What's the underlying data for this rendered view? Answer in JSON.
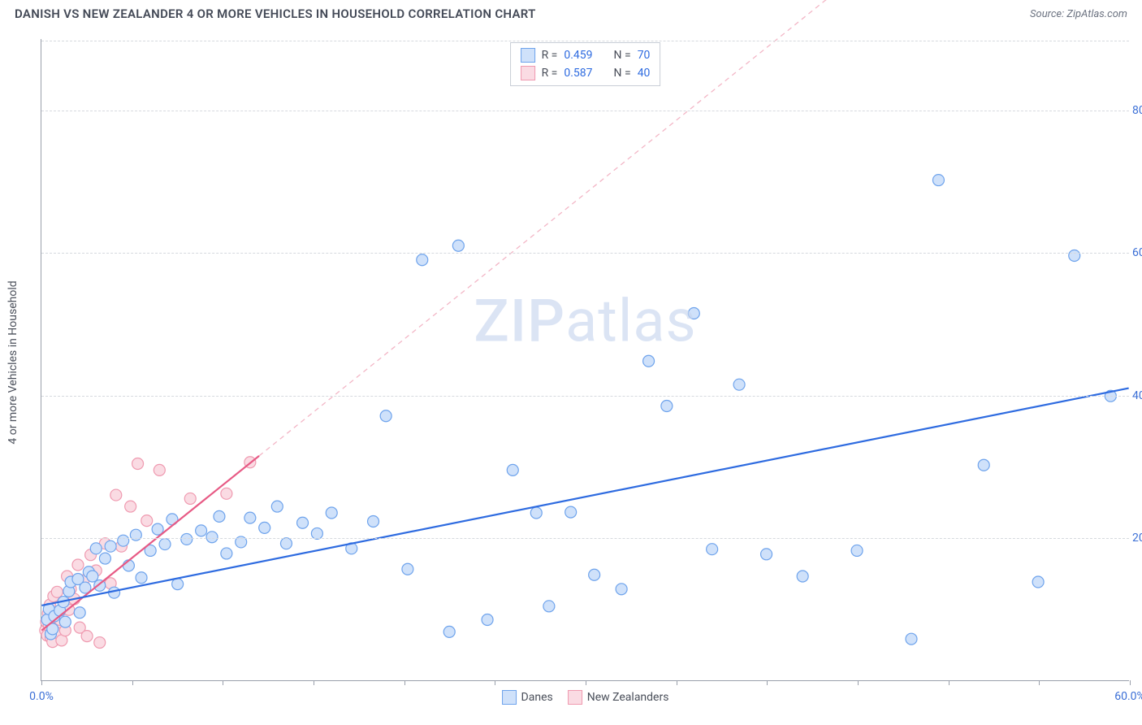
{
  "title": "DANISH VS NEW ZEALANDER 4 OR MORE VEHICLES IN HOUSEHOLD CORRELATION CHART",
  "source": "Source: ZipAtlas.com",
  "y_axis_label": "4 or more Vehicles in Household",
  "watermark": "ZIPatlas",
  "chart": {
    "type": "scatter",
    "xlim": [
      0,
      60
    ],
    "ylim": [
      0,
      90
    ],
    "background_color": "#ffffff",
    "grid_color": "#d6d9de",
    "axis_color": "#9aa0ab",
    "y_ticks": [
      20,
      40,
      60,
      80
    ],
    "y_tick_labels": [
      "20.0%",
      "40.0%",
      "60.0%",
      "80.0%"
    ],
    "x_ticks": [
      0,
      5,
      10,
      15,
      20,
      25,
      30,
      35,
      40,
      45,
      50,
      55,
      60
    ],
    "x_tick_labels_shown": {
      "0": "0.0%",
      "60": "60.0%"
    },
    "marker_radius": 7,
    "series": [
      {
        "name": "Danes",
        "fill": "#cfe1fa",
        "stroke": "#6ea3ec",
        "r_value": "0.459",
        "n_value": "70",
        "trend": {
          "x1": 0,
          "y1": 10.5,
          "x2": 60,
          "y2": 41,
          "dash_from_x": null,
          "solid_color": "#2e6be0",
          "dash_color": "#9fbdf0"
        },
        "points": [
          [
            0.3,
            8.5
          ],
          [
            0.4,
            10
          ],
          [
            0.5,
            6.5
          ],
          [
            0.6,
            7.2
          ],
          [
            0.7,
            9
          ],
          [
            1,
            9.8
          ],
          [
            1.2,
            11
          ],
          [
            1.3,
            8.2
          ],
          [
            1.5,
            12.5
          ],
          [
            1.6,
            13.8
          ],
          [
            2,
            14.2
          ],
          [
            2.1,
            9.5
          ],
          [
            2.4,
            13
          ],
          [
            2.6,
            15.2
          ],
          [
            2.8,
            14.6
          ],
          [
            3,
            18.5
          ],
          [
            3.2,
            13.3
          ],
          [
            3.5,
            17.1
          ],
          [
            3.8,
            18.8
          ],
          [
            4,
            12.3
          ],
          [
            4.5,
            19.6
          ],
          [
            4.8,
            16.1
          ],
          [
            5.2,
            20.4
          ],
          [
            5.5,
            14.4
          ],
          [
            6,
            18.2
          ],
          [
            6.4,
            21.2
          ],
          [
            6.8,
            19.1
          ],
          [
            7.2,
            22.6
          ],
          [
            7.5,
            13.5
          ],
          [
            8,
            19.8
          ],
          [
            8.8,
            21
          ],
          [
            9.4,
            20.1
          ],
          [
            9.8,
            23
          ],
          [
            10.2,
            17.8
          ],
          [
            11,
            19.4
          ],
          [
            11.5,
            22.8
          ],
          [
            12.3,
            21.4
          ],
          [
            13,
            24.4
          ],
          [
            13.5,
            19.2
          ],
          [
            14.4,
            22.1
          ],
          [
            15.2,
            20.6
          ],
          [
            16,
            23.5
          ],
          [
            17.1,
            18.5
          ],
          [
            18.3,
            22.3
          ],
          [
            19,
            37.1
          ],
          [
            20.2,
            15.6
          ],
          [
            21,
            59
          ],
          [
            22.5,
            6.8
          ],
          [
            23,
            61
          ],
          [
            24.6,
            8.5
          ],
          [
            26,
            29.5
          ],
          [
            27.3,
            23.5
          ],
          [
            28,
            10.4
          ],
          [
            29.2,
            23.6
          ],
          [
            30.5,
            14.8
          ],
          [
            32,
            12.8
          ],
          [
            33.5,
            44.8
          ],
          [
            34.5,
            38.5
          ],
          [
            36,
            51.5
          ],
          [
            37,
            18.4
          ],
          [
            38.5,
            41.5
          ],
          [
            40,
            17.7
          ],
          [
            42,
            14.6
          ],
          [
            45,
            18.2
          ],
          [
            48,
            5.8
          ],
          [
            49.5,
            70.2
          ],
          [
            52,
            30.2
          ],
          [
            55,
            13.8
          ],
          [
            57,
            59.6
          ],
          [
            59,
            39.9
          ]
        ]
      },
      {
        "name": "New Zealanders",
        "fill": "#fadbe3",
        "stroke": "#ef9ab0",
        "r_value": "0.587",
        "n_value": "40",
        "trend": {
          "x1": 0,
          "y1": 7,
          "x2": 12,
          "y2": 31.5,
          "dash_to_x": 45,
          "dash_to_y": 99,
          "solid_color": "#e75a85",
          "dash_color": "#f3b6c6"
        },
        "points": [
          [
            0.2,
            7
          ],
          [
            0.25,
            8.2
          ],
          [
            0.3,
            6.3
          ],
          [
            0.35,
            9.4
          ],
          [
            0.4,
            7.7
          ],
          [
            0.45,
            10.6
          ],
          [
            0.5,
            6
          ],
          [
            0.55,
            8.8
          ],
          [
            0.6,
            5.4
          ],
          [
            0.65,
            11.8
          ],
          [
            0.7,
            9
          ],
          [
            0.8,
            7.3
          ],
          [
            0.85,
            12.4
          ],
          [
            0.9,
            6.6
          ],
          [
            1,
            8.5
          ],
          [
            1.1,
            5.6
          ],
          [
            1.2,
            10
          ],
          [
            1.3,
            7
          ],
          [
            1.4,
            14.6
          ],
          [
            1.5,
            9.9
          ],
          [
            1.6,
            12.8
          ],
          [
            1.8,
            11.4
          ],
          [
            2,
            16.2
          ],
          [
            2.1,
            7.4
          ],
          [
            2.3,
            14
          ],
          [
            2.5,
            6.2
          ],
          [
            2.7,
            17.6
          ],
          [
            3,
            15.4
          ],
          [
            3.2,
            5.3
          ],
          [
            3.5,
            19.2
          ],
          [
            3.8,
            13.6
          ],
          [
            4.1,
            26
          ],
          [
            4.4,
            18.8
          ],
          [
            4.9,
            24.4
          ],
          [
            5.3,
            30.4
          ],
          [
            5.8,
            22.4
          ],
          [
            6.5,
            29.5
          ],
          [
            8.2,
            25.5
          ],
          [
            10.2,
            26.2
          ],
          [
            11.5,
            30.6
          ]
        ]
      }
    ]
  },
  "legend_top": {
    "rows": [
      {
        "swatch_fill": "#cfe1fa",
        "swatch_stroke": "#6ea3ec",
        "r_label": "R =",
        "r_value": "0.459",
        "n_label": "N =",
        "n_value": "70"
      },
      {
        "swatch_fill": "#fadbe3",
        "swatch_stroke": "#ef9ab0",
        "r_label": "R =",
        "r_value": "0.587",
        "n_label": "N =",
        "n_value": "40"
      }
    ]
  },
  "legend_bottom": [
    {
      "swatch_fill": "#cfe1fa",
      "swatch_stroke": "#6ea3ec",
      "label": "Danes"
    },
    {
      "swatch_fill": "#fadbe3",
      "swatch_stroke": "#ef9ab0",
      "label": "New Zealanders"
    }
  ],
  "colors": {
    "title_text": "#444a57",
    "tick_text": "#3b6fd6",
    "axis_label_text": "#4a4f5a"
  }
}
